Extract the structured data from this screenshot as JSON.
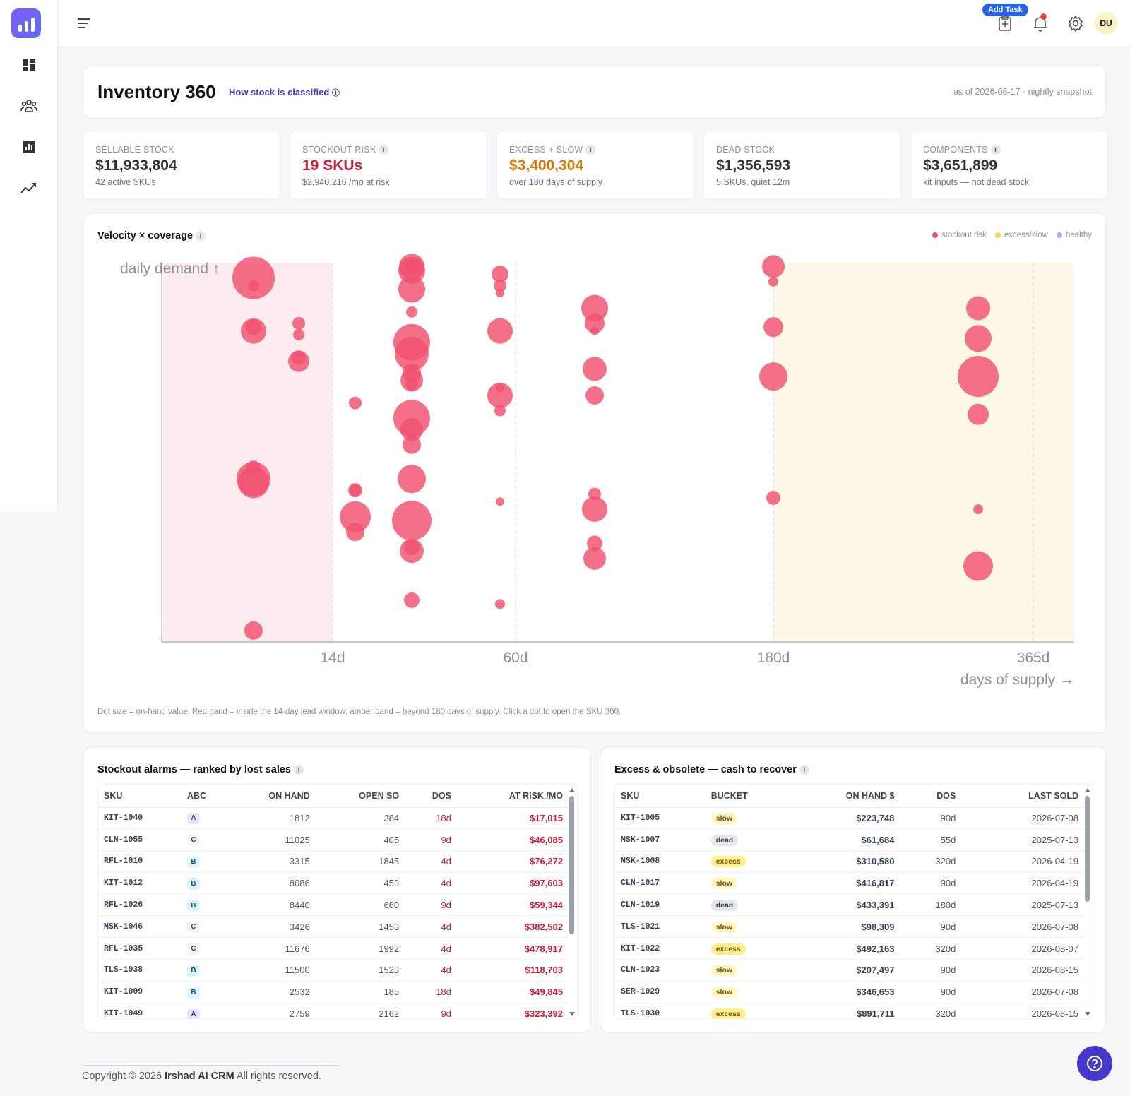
{
  "topbar": {
    "add_task_label": "Add Task",
    "avatar_initials": "DU"
  },
  "header": {
    "title": "Inventory 360",
    "how_link": "How stock is classified",
    "as_of": "as of 2026-08-17 · nightly snapshot"
  },
  "kpis": [
    {
      "label": "SELLABLE STOCK",
      "value": "$11,933,804",
      "sub": "42 active SKUs",
      "color": "#333333",
      "info": false
    },
    {
      "label": "STOCKOUT RISK",
      "value": "19 SKUs",
      "sub": "$2,940,216 /mo at risk",
      "color": "#c81e3a",
      "info": true
    },
    {
      "label": "EXCESS + SLOW",
      "value": "$3,400,304",
      "sub": "over 180 days of supply",
      "color": "#d97706",
      "info": true
    },
    {
      "label": "DEAD STOCK",
      "value": "$1,356,593",
      "sub": "5 SKUs, quiet 12m",
      "color": "#333333",
      "info": false
    },
    {
      "label": "COMPONENTS",
      "value": "$3,651,899",
      "sub": "kit inputs — not dead stock",
      "color": "#333333",
      "info": true
    }
  ],
  "chart": {
    "title": "Velocity × coverage",
    "legend": [
      {
        "label": "stockout risk",
        "color": "#f0506e"
      },
      {
        "label": "excess/slow",
        "color": "#fcd34d"
      },
      {
        "label": "healthy",
        "color": "#a5b4fc"
      }
    ],
    "note": "Dot size = on-hand value. Red band = inside the 14-day lead window; amber band = beyond 180 days of supply. Click a dot to open the SKU 360."
  },
  "chart_data": {
    "type": "scatter",
    "xlabel": "days of supply →",
    "ylabel": "daily demand ↑",
    "x_ticks": [
      "14d",
      "60d",
      "180d",
      "365d"
    ],
    "bands": [
      {
        "name": "Red band",
        "range": [
          "start",
          "14d"
        ],
        "color": "#fdecef"
      },
      {
        "name": "amber band",
        "range": [
          "180d",
          "end"
        ],
        "color": "#fef9e7"
      }
    ],
    "columns": [
      {
        "x": "4d",
        "points": [
          [
            0.96,
            30
          ],
          [
            0.94,
            8
          ],
          [
            0.83,
            11
          ],
          [
            0.82,
            18
          ],
          [
            0.46,
            10
          ],
          [
            0.43,
            24
          ],
          [
            0.42,
            22
          ],
          [
            0.03,
            13
          ]
        ]
      },
      {
        "x": "9d",
        "points": [
          [
            0.84,
            9
          ],
          [
            0.81,
            8
          ],
          [
            0.74,
            15
          ],
          [
            0.75,
            10
          ]
        ]
      },
      {
        "x": "9d",
        "points": [
          [
            0.99,
            11
          ],
          [
            0.93,
            19
          ],
          [
            0.87,
            8
          ],
          [
            0.79,
            26
          ],
          [
            0.69,
            16
          ],
          [
            0.56,
            16
          ],
          [
            0.43,
            20
          ],
          [
            0.32,
            28
          ],
          [
            0.11,
            11
          ]
        ]
      },
      {
        "x": "18d",
        "points": [
          [
            0.63,
            9
          ],
          [
            0.4,
            8
          ],
          [
            0.4,
            10
          ],
          [
            0.33,
            22
          ],
          [
            0.29,
            13
          ]
        ]
      },
      {
        "x": "30d",
        "points": [
          [
            0.99,
            18
          ],
          [
            0.98,
            19
          ],
          [
            0.76,
            24
          ],
          [
            0.71,
            13
          ],
          [
            0.68,
            9
          ],
          [
            0.59,
            26
          ],
          [
            0.52,
            13
          ],
          [
            0.25,
            11
          ],
          [
            0.24,
            17
          ]
        ]
      },
      {
        "x": "55d",
        "points": [
          [
            0.97,
            12
          ],
          [
            0.94,
            9
          ],
          [
            0.92,
            6
          ],
          [
            0.82,
            18
          ],
          [
            0.67,
            6
          ],
          [
            0.65,
            18
          ],
          [
            0.61,
            8
          ],
          [
            0.37,
            6
          ],
          [
            0.1,
            7
          ]
        ]
      },
      {
        "x": "90d",
        "points": [
          [
            0.88,
            19
          ],
          [
            0.84,
            14
          ],
          [
            0.82,
            6
          ],
          [
            0.72,
            17
          ],
          [
            0.65,
            13
          ],
          [
            0.39,
            9
          ],
          [
            0.35,
            18
          ],
          [
            0.26,
            11
          ],
          [
            0.22,
            16
          ]
        ]
      },
      {
        "x": "180d",
        "points": [
          [
            0.99,
            16
          ],
          [
            0.95,
            7
          ],
          [
            0.83,
            14
          ],
          [
            0.7,
            20
          ],
          [
            0.38,
            10
          ]
        ]
      },
      {
        "x": "320d",
        "points": [
          [
            0.88,
            17
          ],
          [
            0.8,
            19
          ],
          [
            0.7,
            29
          ],
          [
            0.6,
            15
          ],
          [
            0.35,
            7
          ],
          [
            0.2,
            21
          ]
        ]
      }
    ]
  },
  "stockout": {
    "title": "Stockout alarms — ranked by lost sales",
    "headers": [
      "SKU",
      "ABC",
      "ON HAND",
      "OPEN SO",
      "DOS",
      "AT RISK /MO"
    ],
    "rows": [
      [
        "KIT-1040",
        "A",
        "1812",
        "384",
        "18d",
        "$17,015"
      ],
      [
        "CLN-1055",
        "C",
        "11025",
        "405",
        "9d",
        "$46,085"
      ],
      [
        "RFL-1010",
        "B",
        "3315",
        "1845",
        "4d",
        "$76,272"
      ],
      [
        "KIT-1012",
        "B",
        "8086",
        "453",
        "4d",
        "$97,603"
      ],
      [
        "RFL-1026",
        "B",
        "8440",
        "680",
        "9d",
        "$59,344"
      ],
      [
        "MSK-1046",
        "C",
        "3426",
        "1453",
        "4d",
        "$382,502"
      ],
      [
        "RFL-1035",
        "C",
        "11676",
        "1992",
        "4d",
        "$478,917"
      ],
      [
        "TLS-1038",
        "B",
        "11500",
        "1523",
        "4d",
        "$118,703"
      ],
      [
        "KIT-1009",
        "B",
        "2532",
        "185",
        "18d",
        "$49,845"
      ],
      [
        "KIT-1049",
        "A",
        "2759",
        "2162",
        "9d",
        "$323,392"
      ]
    ]
  },
  "excess": {
    "title": "Excess & obsolete — cash to recover",
    "headers": [
      "SKU",
      "BUCKET",
      "ON HAND $",
      "DOS",
      "LAST SOLD"
    ],
    "rows": [
      [
        "KIT-1005",
        "slow",
        "$223,748",
        "90d",
        "2026-07-08"
      ],
      [
        "MSK-1007",
        "dead",
        "$61,684",
        "55d",
        "2025-07-13"
      ],
      [
        "MSK-1008",
        "excess",
        "$310,580",
        "320d",
        "2026-04-19"
      ],
      [
        "CLN-1017",
        "slow",
        "$416,817",
        "90d",
        "2026-04-19"
      ],
      [
        "CLN-1019",
        "dead",
        "$433,391",
        "180d",
        "2025-07-13"
      ],
      [
        "TLS-1021",
        "slow",
        "$98,309",
        "90d",
        "2026-07-08"
      ],
      [
        "KIT-1022",
        "excess",
        "$492,163",
        "320d",
        "2026-08-07"
      ],
      [
        "CLN-1023",
        "slow",
        "$207,497",
        "90d",
        "2026-08-15"
      ],
      [
        "SER-1029",
        "slow",
        "$346,653",
        "90d",
        "2026-07-08"
      ],
      [
        "TLS-1030",
        "excess",
        "$891,711",
        "320d",
        "2026-08-15"
      ]
    ]
  },
  "footer": {
    "prefix": "Copyright © 2026",
    "brand": "Irshad AI CRM",
    "suffix": "All rights reserved."
  }
}
